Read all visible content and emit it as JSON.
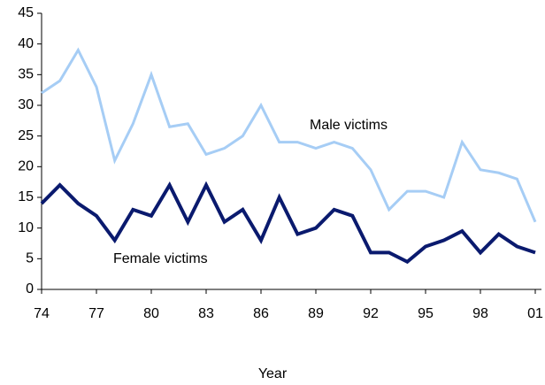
{
  "chart_data": {
    "type": "line",
    "categories": [
      "74",
      null,
      null,
      "77",
      null,
      null,
      "80",
      null,
      null,
      "83",
      null,
      null,
      "86",
      null,
      null,
      "89",
      null,
      null,
      "92",
      null,
      null,
      "95",
      null,
      null,
      "98",
      null,
      null,
      "01"
    ],
    "series": [
      {
        "name": "Male victims",
        "color": "#a6cdf5",
        "values": [
          32,
          34,
          39,
          33,
          21,
          27,
          35,
          26.5,
          27,
          22,
          23,
          25,
          30,
          24,
          24,
          23,
          24,
          23,
          19.5,
          13,
          16,
          16,
          15,
          24,
          19.5,
          19,
          18,
          11
        ]
      },
      {
        "name": "Female victims",
        "color": "#0a1a6e",
        "values": [
          14,
          17,
          14,
          12,
          8,
          13,
          12,
          17,
          11,
          17,
          11,
          13,
          8,
          15,
          9,
          10,
          13,
          12,
          6,
          6,
          4.5,
          7,
          8,
          9.5,
          6,
          9,
          7,
          6
        ]
      }
    ],
    "xlabel": "Year",
    "ylim": [
      0,
      45
    ],
    "yticks": [
      0,
      5,
      10,
      15,
      20,
      25,
      30,
      35,
      40,
      45
    ],
    "grid": false
  }
}
